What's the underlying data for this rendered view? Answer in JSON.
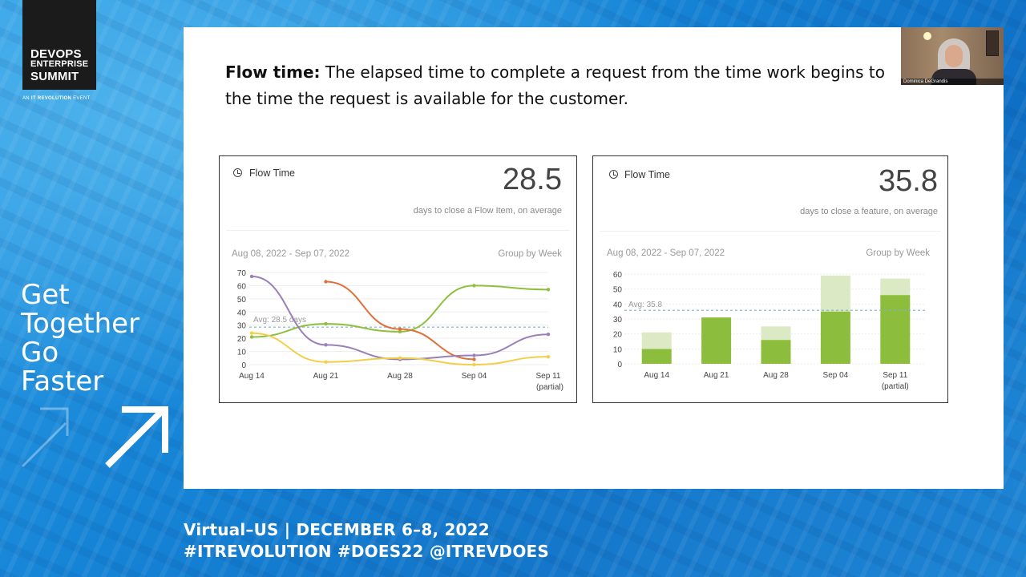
{
  "logo": {
    "line1": "DEVOPS",
    "line2": "ENTERPRISE",
    "line3": "SUMMIT",
    "sub_prefix": "AN",
    "sub_brand": "IT REVOLUTION",
    "sub_suffix": "EVENT"
  },
  "tagline": [
    "Get",
    "Together",
    "Go",
    "Faster"
  ],
  "footer": {
    "line1": "Virtual–US | DECEMBER 6–8, 2022",
    "line2": "#ITREVOLUTION  #DOES22  @ITREVDOES"
  },
  "slide": {
    "heading_bold": "Flow time:",
    "heading_rest": " The elapsed time to complete a request from the time work begins to the time the request is available for the customer."
  },
  "webcam": {
    "name": "Dominica DeGrandis"
  },
  "panels": [
    {
      "title": "Flow Time",
      "big": "28.5",
      "desc": "days to close a Flow Item, on average",
      "date_range": "Aug 08, 2022 - Sep 07, 2022",
      "group": "Group by Week"
    },
    {
      "title": "Flow Time",
      "big": "35.8",
      "desc": "days to close a feature, on average",
      "date_range": "Aug 08, 2022 - Sep 07, 2022",
      "group": "Group by Week"
    }
  ],
  "chart_data": [
    {
      "type": "line",
      "x": [
        "Aug 14",
        "Aug 21",
        "Aug 28",
        "Sep 04",
        "Sep 11"
      ],
      "x_sublabels": [
        "",
        "",
        "",
        "",
        "(partial)"
      ],
      "ylim": [
        0,
        70
      ],
      "yticks": [
        0,
        10,
        20,
        30,
        40,
        50,
        60,
        70
      ],
      "avg_label": "Avg: 28.5 days",
      "avg_value": 28.5,
      "colors": {
        "green": "#8fbf3f",
        "orange": "#e0703a",
        "purple": "#9b7fb8",
        "yellow": "#f2cf4a",
        "avg": "#7fb0c9"
      },
      "series": [
        {
          "values": [
            21,
            31,
            25,
            60,
            57
          ],
          "color": "#8fbf3f"
        },
        {
          "values": [
            null,
            63,
            27,
            4,
            null
          ],
          "color": "#e0703a"
        },
        {
          "values": [
            67,
            15,
            4,
            7,
            23
          ],
          "color": "#9b7fb8"
        },
        {
          "values": [
            24,
            2,
            5,
            0,
            6
          ],
          "color": "#f2cf4a"
        }
      ]
    },
    {
      "type": "bar",
      "categories": [
        "Aug 14",
        "Aug 21",
        "Aug 28",
        "Sep 04",
        "Sep 11"
      ],
      "x_sublabels": [
        "",
        "",
        "",
        "",
        "(partial)"
      ],
      "ylim": [
        0,
        60
      ],
      "yticks": [
        0,
        10,
        20,
        30,
        40,
        50,
        60
      ],
      "avg_label": "Avg: 35.8",
      "avg_value": 35.8,
      "colors": {
        "dark": "#8dbd3c",
        "light": "#dbe9c4",
        "avg": "#7fb0c9"
      },
      "series": [
        {
          "values": [
            10,
            31,
            16,
            35,
            46
          ],
          "color": "#8dbd3c"
        },
        {
          "values": [
            11,
            0,
            9,
            24,
            11
          ],
          "color": "#dbe9c4"
        }
      ]
    }
  ]
}
